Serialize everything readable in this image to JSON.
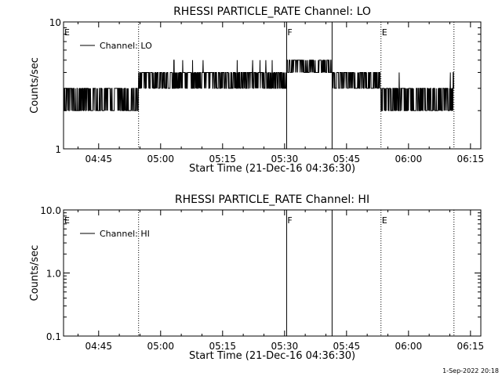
{
  "stamp": "1-Sep-2022 20:18",
  "chart_data": [
    {
      "type": "line",
      "title": "RHESSI PARTICLE_RATE Channel: LO",
      "xlabel": "Start Time (21-Dec-16 04:36:30)",
      "ylabel": "Counts/sec",
      "yscale": "log",
      "ylim": [
        1,
        10
      ],
      "ytick_labels": [
        "1",
        "10"
      ],
      "xlim": [
        "04:36:30",
        "06:17:30"
      ],
      "xtick_labels": [
        "04:45",
        "05:00",
        "05:15",
        "05:30",
        "05:45",
        "06:00",
        "06:15"
      ],
      "legend": {
        "label": "Channel: LO",
        "placement": "top-left"
      },
      "grid": false,
      "markers": [
        {
          "label": "E",
          "time": "04:36:30",
          "style": "dotted"
        },
        {
          "label": "",
          "time": "04:54:40",
          "style": "dotted"
        },
        {
          "label": "F",
          "time": "05:30:30",
          "style": "solid"
        },
        {
          "label": "",
          "time": "05:41:30",
          "style": "solid"
        },
        {
          "label": "E",
          "time": "05:53:20",
          "style": "dotted"
        },
        {
          "label": "",
          "time": "06:11:00",
          "style": "dotted"
        }
      ],
      "series": [
        {
          "name": "Channel: LO",
          "segments": [
            {
              "start": "04:36:30",
              "end": "04:54:40",
              "levels": [
                2,
                3
              ],
              "spikes": []
            },
            {
              "start": "04:54:40",
              "end": "05:30:30",
              "levels": [
                3,
                4
              ],
              "spikes": [
                5
              ]
            },
            {
              "start": "05:30:30",
              "end": "05:41:30",
              "levels": [
                4,
                5
              ],
              "spikes": []
            },
            {
              "start": "05:41:30",
              "end": "05:53:20",
              "levels": [
                3,
                4
              ],
              "spikes": []
            },
            {
              "start": "05:53:20",
              "end": "06:11:00",
              "levels": [
                2,
                3
              ],
              "spikes": [
                4
              ]
            }
          ]
        }
      ]
    },
    {
      "type": "line",
      "title": "RHESSI PARTICLE_RATE Channel: HI",
      "xlabel": "Start Time (21-Dec-16 04:36:30)",
      "ylabel": "Counts/sec",
      "yscale": "log",
      "ylim": [
        0.1,
        10
      ],
      "ytick_labels": [
        "0.1",
        "1.0",
        "10.0"
      ],
      "xlim": [
        "04:36:30",
        "06:17:30"
      ],
      "xtick_labels": [
        "04:45",
        "05:00",
        "05:15",
        "05:30",
        "05:45",
        "06:00",
        "06:15"
      ],
      "legend": {
        "label": "Channel: HI",
        "placement": "top-left"
      },
      "grid": false,
      "markers": [
        {
          "label": "E",
          "time": "04:36:30",
          "style": "dotted"
        },
        {
          "label": "",
          "time": "04:54:40",
          "style": "dotted"
        },
        {
          "label": "F",
          "time": "05:30:30",
          "style": "solid"
        },
        {
          "label": "",
          "time": "05:41:30",
          "style": "solid"
        },
        {
          "label": "E",
          "time": "05:53:20",
          "style": "dotted"
        },
        {
          "label": "",
          "time": "06:11:00",
          "style": "dotted"
        }
      ],
      "series": [
        {
          "name": "Channel: HI",
          "segments": []
        }
      ]
    }
  ]
}
